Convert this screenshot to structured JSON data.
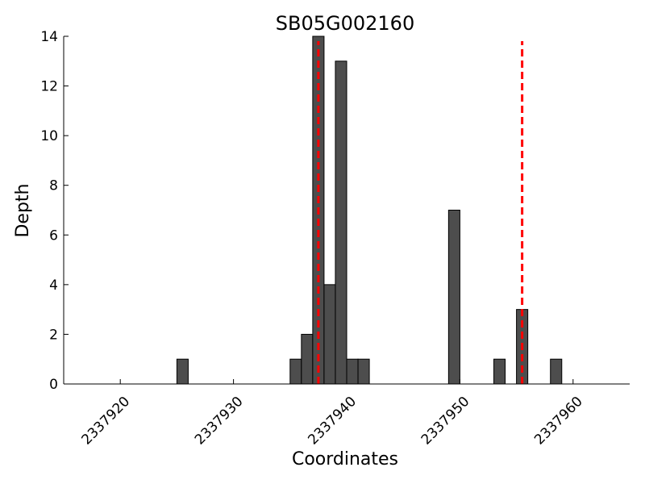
{
  "chart_data": {
    "type": "bar",
    "title": "SB05G002160",
    "xlabel": "Coordinates",
    "ylabel": "Depth",
    "xlim": [
      2337915,
      2337965
    ],
    "ylim": [
      0,
      14
    ],
    "x_ticks": [
      2337920,
      2337930,
      2337940,
      2337950,
      2337960
    ],
    "x_tick_labels": [
      "2337920",
      "2337930",
      "2337940",
      "2337950",
      "2337960"
    ],
    "y_ticks": [
      0,
      2,
      4,
      6,
      8,
      10,
      12,
      14
    ],
    "y_tick_labels": [
      "0",
      "2",
      "4",
      "6",
      "8",
      "10",
      "12",
      "14"
    ],
    "bar_width": 1,
    "bar_color": "#4d4d4d",
    "bar_edge_color": "#000000",
    "x": [
      2337925,
      2337935,
      2337936,
      2337937,
      2337938,
      2337939,
      2337940,
      2337941,
      2337949,
      2337953,
      2337955,
      2337958
    ],
    "values": [
      1,
      1,
      2,
      14,
      4,
      13,
      1,
      1,
      7,
      1,
      3,
      1
    ],
    "reference_lines": [
      {
        "x": 2337937.5,
        "color": "#ff0000",
        "style": "dashed"
      },
      {
        "x": 2337955.5,
        "color": "#ff0000",
        "style": "dashed"
      }
    ],
    "grid": false,
    "legend": "none"
  }
}
